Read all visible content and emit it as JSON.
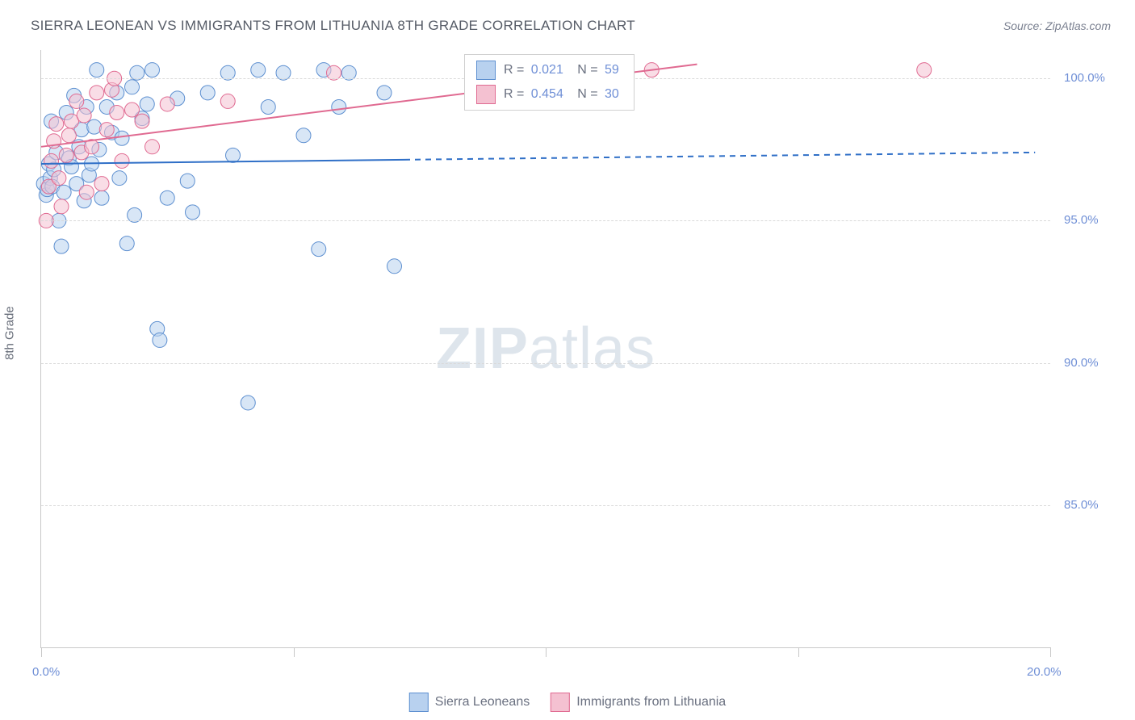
{
  "title": "SIERRA LEONEAN VS IMMIGRANTS FROM LITHUANIA 8TH GRADE CORRELATION CHART",
  "source": "Source: ZipAtlas.com",
  "watermark_prefix": "ZIP",
  "watermark_suffix": "atlas",
  "axis": {
    "y_title": "8th Grade",
    "xlim": [
      0,
      20
    ],
    "ylim": [
      80,
      101
    ],
    "x_ticks": [
      0,
      5,
      10,
      15,
      20
    ],
    "x_tick_labels": [
      "0.0%",
      "",
      "",
      "",
      "20.0%"
    ],
    "y_ticks": [
      85,
      90,
      95,
      100
    ],
    "y_tick_labels": [
      "85.0%",
      "90.0%",
      "95.0%",
      "100.0%"
    ],
    "grid_color": "#d9d9d9",
    "axis_color": "#c8c8c8"
  },
  "stats": {
    "series1": {
      "r_label": "R =",
      "r": "0.021",
      "n_label": "N =",
      "n": "59"
    },
    "series2": {
      "r_label": "R =",
      "r": "0.454",
      "n_label": "N =",
      "n": "30"
    }
  },
  "series": [
    {
      "name": "Sierra Leoneans",
      "color_fill": "#b8d1ef",
      "color_stroke": "#5d8fd0",
      "marker_radius": 9,
      "fill_opacity": 0.55,
      "regression": {
        "x1": 0,
        "y1": 97.0,
        "x2": 20,
        "y2": 97.4,
        "solid_until_x": 7.2,
        "color": "#2f6fc7",
        "width": 2
      },
      "points": [
        [
          0.05,
          96.3
        ],
        [
          0.1,
          95.9
        ],
        [
          0.12,
          96.1
        ],
        [
          0.15,
          97.0
        ],
        [
          0.18,
          96.5
        ],
        [
          0.2,
          98.5
        ],
        [
          0.22,
          96.2
        ],
        [
          0.25,
          96.8
        ],
        [
          0.3,
          97.4
        ],
        [
          0.35,
          95.0
        ],
        [
          0.4,
          94.1
        ],
        [
          0.45,
          96.0
        ],
        [
          0.5,
          98.8
        ],
        [
          0.55,
          97.2
        ],
        [
          0.6,
          96.9
        ],
        [
          0.65,
          99.4
        ],
        [
          0.7,
          96.3
        ],
        [
          0.75,
          97.6
        ],
        [
          0.8,
          98.2
        ],
        [
          0.85,
          95.7
        ],
        [
          0.9,
          99.0
        ],
        [
          0.95,
          96.6
        ],
        [
          1.0,
          97.0
        ],
        [
          1.05,
          98.3
        ],
        [
          1.1,
          100.3
        ],
        [
          1.15,
          97.5
        ],
        [
          1.2,
          95.8
        ],
        [
          1.3,
          99.0
        ],
        [
          1.4,
          98.1
        ],
        [
          1.5,
          99.5
        ],
        [
          1.55,
          96.5
        ],
        [
          1.6,
          97.9
        ],
        [
          1.7,
          94.2
        ],
        [
          1.8,
          99.7
        ],
        [
          1.85,
          95.2
        ],
        [
          1.9,
          100.2
        ],
        [
          2.0,
          98.6
        ],
        [
          2.1,
          99.1
        ],
        [
          2.2,
          100.3
        ],
        [
          2.3,
          91.2
        ],
        [
          2.35,
          90.8
        ],
        [
          2.5,
          95.8
        ],
        [
          2.7,
          99.3
        ],
        [
          2.9,
          96.4
        ],
        [
          3.0,
          95.3
        ],
        [
          3.3,
          99.5
        ],
        [
          3.7,
          100.2
        ],
        [
          3.8,
          97.3
        ],
        [
          4.1,
          88.6
        ],
        [
          4.3,
          100.3
        ],
        [
          4.5,
          99.0
        ],
        [
          4.8,
          100.2
        ],
        [
          5.2,
          98.0
        ],
        [
          5.5,
          94.0
        ],
        [
          5.6,
          100.3
        ],
        [
          5.9,
          99.0
        ],
        [
          6.1,
          100.2
        ],
        [
          7.0,
          93.4
        ],
        [
          6.8,
          99.5
        ]
      ]
    },
    {
      "name": "Immigrants from Lithuania",
      "color_fill": "#f4c1d1",
      "color_stroke": "#e06a91",
      "marker_radius": 9,
      "fill_opacity": 0.55,
      "regression": {
        "x1": 0,
        "y1": 97.6,
        "x2": 13.0,
        "y2": 100.5,
        "solid_until_x": 13.0,
        "color": "#e06a91",
        "width": 2
      },
      "points": [
        [
          0.1,
          95.0
        ],
        [
          0.15,
          96.2
        ],
        [
          0.2,
          97.1
        ],
        [
          0.25,
          97.8
        ],
        [
          0.3,
          98.4
        ],
        [
          0.35,
          96.5
        ],
        [
          0.4,
          95.5
        ],
        [
          0.5,
          97.3
        ],
        [
          0.55,
          98.0
        ],
        [
          0.6,
          98.5
        ],
        [
          0.7,
          99.2
        ],
        [
          0.8,
          97.4
        ],
        [
          0.85,
          98.7
        ],
        [
          0.9,
          96.0
        ],
        [
          1.0,
          97.6
        ],
        [
          1.1,
          99.5
        ],
        [
          1.2,
          96.3
        ],
        [
          1.3,
          98.2
        ],
        [
          1.4,
          99.6
        ],
        [
          1.45,
          100.0
        ],
        [
          1.5,
          98.8
        ],
        [
          1.6,
          97.1
        ],
        [
          1.8,
          98.9
        ],
        [
          2.0,
          98.5
        ],
        [
          2.2,
          97.6
        ],
        [
          2.5,
          99.1
        ],
        [
          3.7,
          99.2
        ],
        [
          5.8,
          100.2
        ],
        [
          12.1,
          100.3
        ],
        [
          17.5,
          100.3
        ]
      ]
    }
  ],
  "colors": {
    "blue_fill": "#b8d1ef",
    "blue_stroke": "#5d8fd0",
    "pink_fill": "#f4c1d1",
    "pink_stroke": "#e06a91",
    "text_gray": "#6a7080",
    "value_blue": "#6f8fd6"
  }
}
